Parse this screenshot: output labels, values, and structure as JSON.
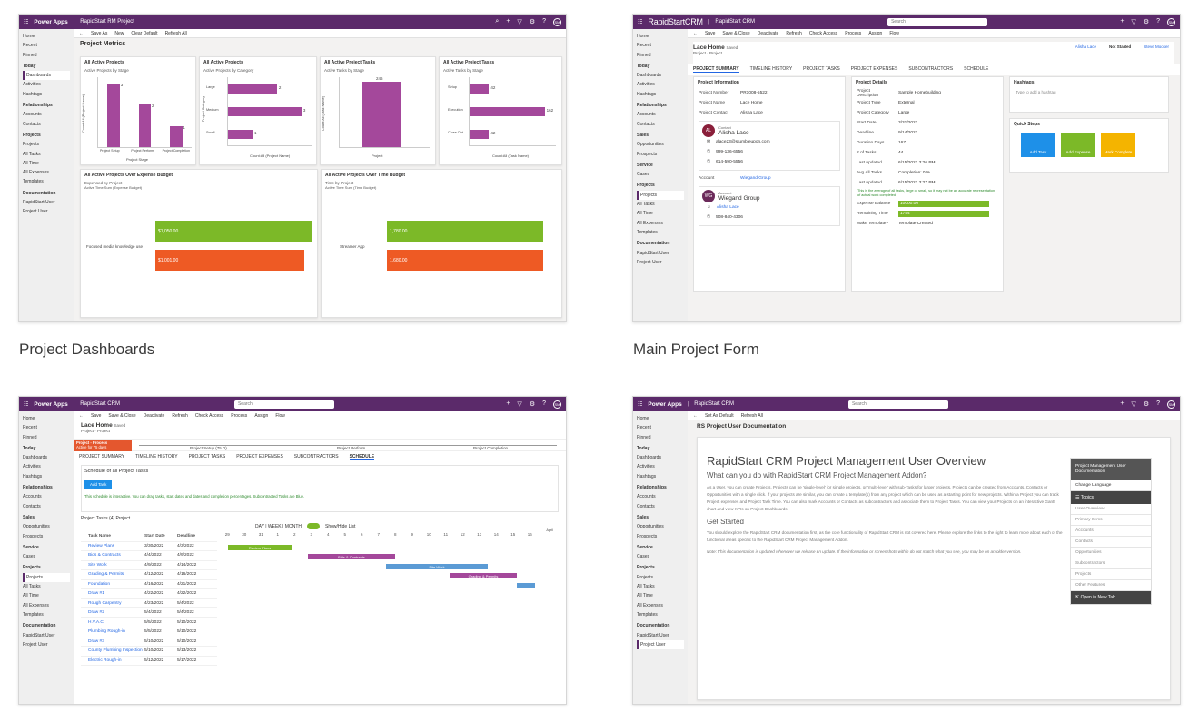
{
  "cards": [
    {
      "caption": "Project Dashboards",
      "app": "Power Apps",
      "site": "RapidStart RM Project",
      "commands": [
        "Save As",
        "New",
        "Clear Default",
        "Refresh All"
      ],
      "heading": "Project Metrics",
      "nav": [
        {
          "label": "Home"
        },
        {
          "label": "Recent"
        },
        {
          "label": "Pinned"
        },
        {
          "label": "Today",
          "group": true
        },
        {
          "label": "Dashboards",
          "selected": true
        },
        {
          "label": "Activities"
        },
        {
          "label": "Hashtags"
        },
        {
          "label": "Relationships",
          "group": true
        },
        {
          "label": "Accounts"
        },
        {
          "label": "Contacts"
        },
        {
          "label": "Projects",
          "group": true
        },
        {
          "label": "Projects"
        },
        {
          "label": "All Tasks"
        },
        {
          "label": "All Time"
        },
        {
          "label": "All Expenses"
        },
        {
          "label": "Templates"
        },
        {
          "label": "Documentation",
          "group": true
        },
        {
          "label": "RapidStart User"
        },
        {
          "label": "Project User"
        }
      ],
      "chart1": {
        "title": "All Active Projects",
        "subtitle": "Active Projects by Stage",
        "ylabel": "Count:All (Project Name)",
        "categories": [
          "Project Setup",
          "Project Perform",
          "Project Completion"
        ],
        "values": [
          3,
          2,
          1
        ],
        "legend": "Project Stage"
      },
      "chart2": {
        "title": "All Active Projects",
        "subtitle": "Active Projects by Category",
        "ylabel": "Project Category",
        "xlabel": "Count:All (Project Name)",
        "categories": [
          "Large",
          "Medium",
          "Small"
        ],
        "values": [
          2,
          3,
          1
        ]
      },
      "chart3": {
        "title": "All Active Project Tasks",
        "subtitle": "Active Tasks by Stage",
        "ylabel": "Count:All (Task Name)",
        "value_label": "246",
        "legend": "Project"
      },
      "chart4": {
        "title": "All Active Project Tasks",
        "subtitle": "Active Tasks by Stage",
        "xlabel": "Count:All (Task Name)",
        "categories": [
          "Setup",
          "Execution",
          "Close Out"
        ],
        "values": [
          42,
          162,
          42
        ]
      },
      "chart5": {
        "title": "All Active Projects Over Expense Budget",
        "subtitle": "Expensed by Project",
        "legend": "Active Time  Sum (Expense Budget)",
        "category": "Focused media knowledge use",
        "bars": [
          {
            "label": "$1,050.00",
            "color": "#7cb928"
          },
          {
            "label": "$1,001.00",
            "color": "#ee5a24"
          }
        ]
      },
      "chart6": {
        "title": "All Active Projects Over Time Budget",
        "subtitle": "Time by Project",
        "legend": "Active Time  Sum (Time Budget)",
        "category": "Streamer App",
        "bars": [
          {
            "label": "1,780.00",
            "color": "#7cb928"
          },
          {
            "label": "1,680.00",
            "color": "#ee5a24"
          }
        ]
      }
    },
    {
      "caption": "Main Project Form",
      "brand": "RapidStartCRM",
      "site": "RapidStart CRM",
      "search": "Search",
      "commands": [
        "Save",
        "Save & Close",
        "Deactivate",
        "Refresh",
        "Check Access",
        "Process",
        "Assign",
        "Flow"
      ],
      "record": "Lace Home",
      "record_sub": "Saved",
      "entity": "Project · Project",
      "owner": "Alisha Lace",
      "status": "Not Started",
      "manager": "Steve Mooker",
      "tabs": [
        "PROJECT SUMMARY",
        "TIMELINE HISTORY",
        "PROJECT TASKS",
        "PROJECT EXPENSES",
        "SUBCONTRACTORS",
        "SCHEDULE"
      ],
      "info_title": "Project Information",
      "info_rows": [
        {
          "label": "Project Number",
          "value": "PR1008-5522"
        },
        {
          "label": "Project Name",
          "value": "Lace Home"
        },
        {
          "label": "Project Contact",
          "value": "Alisha Lace"
        }
      ],
      "contact": {
        "tag": "Contact",
        "initials": "AL",
        "name": "Alisha Lace",
        "email": "alace23@stumbleupon.com",
        "phone1": "999-136-6556",
        "phone2": "614-590-5556"
      },
      "account_label": "Account",
      "account_value": "Wiegand Group",
      "account": {
        "tag": "Account",
        "initials": "WG",
        "name": "Wiegand Group",
        "contact": "Alisha Lace",
        "phone": "508-840-4306"
      },
      "details_title": "Project Details",
      "detail_rows": [
        {
          "label": "Project Description",
          "value": "Sample Homebuilding"
        },
        {
          "label": "Project Type",
          "value": "External"
        },
        {
          "label": "Project Category",
          "value": "Large"
        },
        {
          "label": "Start Date",
          "value": "3/31/2022"
        },
        {
          "label": "Deadline",
          "value": "9/14/2022"
        },
        {
          "label": "Duration Days",
          "value": "167"
        },
        {
          "label": "# of Tasks",
          "value": "44"
        },
        {
          "label": "Last updated",
          "value": "6/15/2022 3:26 PM"
        },
        {
          "label": "Avg All Tasks",
          "value": "Completion: 0 %"
        },
        {
          "label": "Last updated",
          "value": "6/15/2022 3:27 PM"
        }
      ],
      "note": "This is the average of all tasks, large or small, so it may not be an accurate representation of actual work completed",
      "expense_label": "Expense Balance",
      "expense_value": "10000.00",
      "time_label": "Remaining Time",
      "time_value": "1754",
      "template_label": "Make Template?",
      "template_value": "Template Created",
      "hashtags_title": "Hashtags",
      "hashtags_hint": "Type to add a hashtag",
      "quick_title": "Quick Steps",
      "quick": [
        {
          "label": "Add Task",
          "color": "#1e90e8"
        },
        {
          "label": "Add Expense",
          "color": "#7cb928"
        },
        {
          "label": "Mark Complete",
          "color": "#f4b400"
        }
      ],
      "nav": [
        {
          "label": "Home"
        },
        {
          "label": "Recent"
        },
        {
          "label": "Pinned"
        },
        {
          "label": "Today",
          "group": true
        },
        {
          "label": "Dashboards"
        },
        {
          "label": "Activities"
        },
        {
          "label": "Hashtags"
        },
        {
          "label": "Relationships",
          "group": true
        },
        {
          "label": "Accounts"
        },
        {
          "label": "Contacts"
        },
        {
          "label": "Sales",
          "group": true
        },
        {
          "label": "Opportunities"
        },
        {
          "label": "Prospects"
        },
        {
          "label": "Service",
          "group": true
        },
        {
          "label": "Cases"
        },
        {
          "label": "Projects",
          "group": true
        },
        {
          "label": "Projects",
          "selected": true
        },
        {
          "label": "All Tasks"
        },
        {
          "label": "All Time"
        },
        {
          "label": "All Expenses"
        },
        {
          "label": "Templates"
        },
        {
          "label": "Documentation",
          "group": true
        },
        {
          "label": "RapidStart User"
        },
        {
          "label": "Project User"
        }
      ]
    },
    {
      "caption": "",
      "app": "Power Apps",
      "site": "RapidStart CRM",
      "search": "Search",
      "commands": [
        "Save",
        "Save & Close",
        "Deactivate",
        "Refresh",
        "Check Access",
        "Process",
        "Assign",
        "Flow"
      ],
      "record": "Lace Home",
      "record_sub": "Saved",
      "entity": "Project · Project",
      "process": "Project - Process",
      "process_sub": "Active for 75 days",
      "stages": [
        "Project Setup (75 D)",
        "Project Perform",
        "Project Completion"
      ],
      "tabs": [
        "PROJECT SUMMARY",
        "TIMELINE HISTORY",
        "PROJECT TASKS",
        "PROJECT EXPENSES",
        "SUBCONTRACTORS",
        "SCHEDULE"
      ],
      "schedule_title": "Schedule of all Project Tasks",
      "add_task": "Add Task",
      "hint": "This schedule is interactive. You can drag tasks, start dates and dates and completion percentages. Subcontracted Tasks are Blue.",
      "grid_title": "Project Tasks (4) Project",
      "views": "DAY | WEEK | MONTH",
      "toggle": "Show/Hide List",
      "columns": [
        "Task Name",
        "Start Date",
        "Deadline"
      ],
      "days": [
        "29",
        "30",
        "31",
        "1",
        "2",
        "3",
        "4",
        "5",
        "6",
        "7",
        "8",
        "9",
        "10",
        "11",
        "12",
        "13",
        "14",
        "15",
        "16"
      ],
      "month": "April",
      "tasks": [
        {
          "name": "Review Plans",
          "start": "3/30/2022",
          "end": "4/3/2022"
        },
        {
          "name": "Bids & Contracts",
          "start": "4/4/2022",
          "end": "4/9/2022"
        },
        {
          "name": "Site Work",
          "start": "4/9/2022",
          "end": "4/14/2022"
        },
        {
          "name": "Grading & Permits",
          "start": "4/12/2022",
          "end": "4/16/2022"
        },
        {
          "name": "Foundation",
          "start": "4/16/2022",
          "end": "4/21/2022"
        },
        {
          "name": "Draw #1",
          "start": "4/22/2022",
          "end": "4/22/2022"
        },
        {
          "name": "Rough Carpentry",
          "start": "4/23/2022",
          "end": "5/4/2022"
        },
        {
          "name": "Draw #2",
          "start": "5/4/2022",
          "end": "5/4/2022"
        },
        {
          "name": "H.V.A.C.",
          "start": "5/5/2022",
          "end": "5/10/2022"
        },
        {
          "name": "Plumbing Rough-in",
          "start": "5/5/2022",
          "end": "5/10/2022"
        },
        {
          "name": "Draw #3",
          "start": "5/10/2022",
          "end": "5/10/2022"
        },
        {
          "name": "County Plumbing Inspection",
          "start": "5/10/2022",
          "end": "5/13/2022"
        },
        {
          "name": "Electric Rough-in",
          "start": "5/12/2022",
          "end": "5/17/2022"
        }
      ],
      "bar_labels": [
        "Review Plans",
        "Bids & Contracts",
        "Site Work",
        "Grading & Permits"
      ],
      "nav": [
        {
          "label": "Home"
        },
        {
          "label": "Recent"
        },
        {
          "label": "Pinned"
        },
        {
          "label": "Today",
          "group": true
        },
        {
          "label": "Dashboards"
        },
        {
          "label": "Activities"
        },
        {
          "label": "Hashtags"
        },
        {
          "label": "Relationships",
          "group": true
        },
        {
          "label": "Accounts"
        },
        {
          "label": "Contacts"
        },
        {
          "label": "Sales",
          "group": true
        },
        {
          "label": "Opportunities"
        },
        {
          "label": "Prospects"
        },
        {
          "label": "Service",
          "group": true
        },
        {
          "label": "Cases"
        },
        {
          "label": "Projects",
          "group": true
        },
        {
          "label": "Projects",
          "selected": true
        },
        {
          "label": "All Tasks"
        },
        {
          "label": "All Time"
        },
        {
          "label": "All Expenses"
        },
        {
          "label": "Templates"
        },
        {
          "label": "Documentation",
          "group": true
        },
        {
          "label": "RapidStart User"
        },
        {
          "label": "Project User"
        }
      ]
    },
    {
      "caption": "",
      "app": "Power Apps",
      "site": "RapidStart CRM",
      "search": "Search",
      "commands": [
        "Set As Default",
        "Refresh All"
      ],
      "heading": "RS Project User Documentation",
      "doc_title": "RapidStart CRM Project Management User Overview",
      "doc_h2": "What can you do with RapidStart CRM Project Management Addon?",
      "doc_p1": "As a User, you can create Projects. Projects can be 'single-level' for simple projects, or 'multi-level' with sub-Tasks for larger projects. Projects can be created from Accounts, Contacts or Opportunities with a single click. If your projects are similar, you can create a template(s) from any project which can be used as a starting point for new projects. Within a Project you can track Project expenses and Project Task Time. You can also mark Accounts or Contacts as subcontractors and associate them to Project Tasks. You can view your Projects on an interactive Gantt chart and view KPIs on Project Dashboards.",
      "doc_h3": "Get Started",
      "doc_p2": "You should explore the RapidStart CRM documentation first, as the core functionality of RapidStart CRM is not covered here. Please explore the links to the right to learn more about each of the functional areas specific to the RapidStart CRM Project Management Addon.",
      "doc_p3": "Note: This documentation is updated whenever we release an update. If the information or screenshots within do not match what you see, you may be on an older version.",
      "toc_title": "Project Management User Documentation",
      "toc_lang": "Change Language",
      "toc_topics": "Topics",
      "toc_items": [
        "User Overview",
        "Primary Items",
        "Accounts",
        "Contacts",
        "Opportunities",
        "Subcontractors",
        "Projects",
        "Other Features"
      ],
      "toc_open": "Open in New Tab",
      "nav": [
        {
          "label": "Home"
        },
        {
          "label": "Recent"
        },
        {
          "label": "Pinned"
        },
        {
          "label": "Today",
          "group": true
        },
        {
          "label": "Dashboards"
        },
        {
          "label": "Activities"
        },
        {
          "label": "Hashtags"
        },
        {
          "label": "Relationships",
          "group": true
        },
        {
          "label": "Accounts"
        },
        {
          "label": "Contacts"
        },
        {
          "label": "Sales",
          "group": true
        },
        {
          "label": "Opportunities"
        },
        {
          "label": "Prospects"
        },
        {
          "label": "Service",
          "group": true
        },
        {
          "label": "Cases"
        },
        {
          "label": "Projects",
          "group": true
        },
        {
          "label": "Projects"
        },
        {
          "label": "All Tasks"
        },
        {
          "label": "All Time"
        },
        {
          "label": "All Expenses"
        },
        {
          "label": "Templates"
        },
        {
          "label": "Documentation",
          "group": true
        },
        {
          "label": "RapidStart User"
        },
        {
          "label": "Project User",
          "selected": true
        }
      ]
    }
  ]
}
